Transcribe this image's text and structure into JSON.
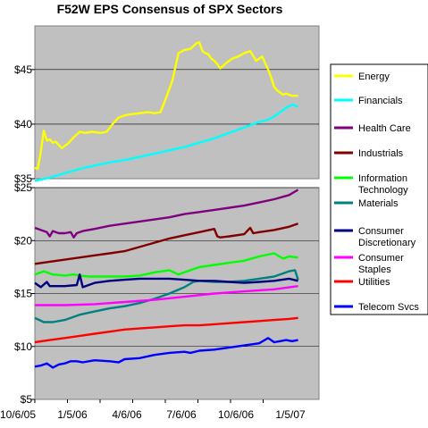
{
  "chart_data": {
    "type": "line",
    "title": "F52W EPS Consensus of SPX Sectors",
    "x_tick_labels": [
      "10/6/05",
      "1/5/06",
      "4/6/06",
      "7/6/06",
      "10/6/06",
      "1/5/07"
    ],
    "upper_panel": {
      "ylim": [
        35,
        49
      ],
      "y_tick_labels": [
        "$35",
        "$40",
        "$45"
      ],
      "y_ticks": [
        35,
        40,
        45
      ],
      "grid": true
    },
    "lower_panel": {
      "ylim": [
        5,
        25
      ],
      "y_tick_labels": [
        "$5",
        "$10",
        "$15",
        "$20",
        "$25"
      ],
      "y_ticks": [
        5,
        10,
        15,
        20,
        25
      ],
      "grid": true
    },
    "xlim": [
      0,
      95
    ],
    "legend_position": "right",
    "series": [
      {
        "name": "Energy",
        "legend_label": "Energy",
        "color": "#ffff00",
        "panel": "upper",
        "x": [
          0,
          1,
          2,
          3,
          4,
          5,
          6,
          7,
          9,
          11,
          13,
          15,
          17,
          19,
          22,
          24,
          26,
          28,
          30,
          32,
          35,
          38,
          40,
          42,
          44,
          46,
          48,
          50,
          52,
          54,
          55,
          56,
          57,
          58,
          59,
          60,
          61,
          62,
          64,
          66,
          67,
          68,
          70,
          72,
          74,
          76,
          78,
          79,
          80,
          81,
          82,
          83,
          84,
          86,
          88
        ],
        "y": [
          36.0,
          35.9,
          37.5,
          39.4,
          38.5,
          38.6,
          38.3,
          38.4,
          37.8,
          38.2,
          38.8,
          39.3,
          39.2,
          39.3,
          39.2,
          39.3,
          40.0,
          40.6,
          40.8,
          40.9,
          41.0,
          41.1,
          41.0,
          41.1,
          42.5,
          44.0,
          46.5,
          46.8,
          46.9,
          47.4,
          47.5,
          46.7,
          46.5,
          46.4,
          46.0,
          45.8,
          45.5,
          45.1,
          45.6,
          46.0,
          46.1,
          46.2,
          46.5,
          46.7,
          45.8,
          46.2,
          45.0,
          44.3,
          43.4,
          43.1,
          42.9,
          42.7,
          42.8,
          42.6,
          42.6
        ]
      },
      {
        "name": "Financials",
        "legend_label": "Financials",
        "color": "#00ffff",
        "panel": "upper",
        "x": [
          0,
          5,
          10,
          15,
          20,
          25,
          30,
          35,
          40,
          45,
          50,
          55,
          60,
          65,
          70,
          75,
          78,
          80,
          82,
          84,
          86,
          88
        ],
        "y": [
          34.8,
          35.1,
          35.5,
          35.9,
          36.2,
          36.5,
          36.7,
          37.0,
          37.3,
          37.6,
          37.9,
          38.3,
          38.7,
          39.2,
          39.7,
          40.2,
          40.4,
          40.7,
          41.1,
          41.5,
          41.8,
          41.6
        ]
      },
      {
        "name": "Health Care",
        "legend_label": "Health Care",
        "color": "#800080",
        "panel": "lower",
        "x": [
          0,
          2,
          4,
          5,
          6,
          8,
          10,
          12,
          13,
          14,
          16,
          20,
          25,
          30,
          35,
          40,
          45,
          50,
          55,
          60,
          65,
          70,
          75,
          80,
          85,
          88
        ],
        "y": [
          21.2,
          21.0,
          20.8,
          20.4,
          20.9,
          20.7,
          20.7,
          20.8,
          20.3,
          20.7,
          20.9,
          21.1,
          21.4,
          21.6,
          21.8,
          22.0,
          22.2,
          22.5,
          22.7,
          22.9,
          23.1,
          23.3,
          23.6,
          23.9,
          24.3,
          24.8
        ]
      },
      {
        "name": "Industrials",
        "legend_label": "Industrials",
        "color": "#800000",
        "panel": "lower",
        "x": [
          0,
          5,
          10,
          15,
          20,
          25,
          30,
          35,
          40,
          45,
          50,
          55,
          60,
          61,
          62,
          65,
          70,
          72,
          73,
          75,
          80,
          85,
          88
        ],
        "y": [
          17.8,
          18.0,
          18.2,
          18.4,
          18.6,
          18.8,
          19.0,
          19.4,
          19.8,
          20.2,
          20.5,
          20.8,
          21.1,
          20.4,
          20.3,
          20.4,
          20.6,
          21.2,
          20.7,
          20.8,
          21.0,
          21.3,
          21.6
        ]
      },
      {
        "name": "Information Technology",
        "legend_label": "Information Technology",
        "color": "#00ff00",
        "panel": "lower",
        "x": [
          0,
          3,
          6,
          10,
          13,
          15,
          18,
          20,
          25,
          30,
          35,
          40,
          45,
          48,
          50,
          55,
          60,
          65,
          70,
          75,
          80,
          83,
          85,
          88
        ],
        "y": [
          16.8,
          17.1,
          16.8,
          16.7,
          16.8,
          16.7,
          16.6,
          16.6,
          16.6,
          16.6,
          16.7,
          17.0,
          17.2,
          16.8,
          17.0,
          17.5,
          17.7,
          17.9,
          18.1,
          18.5,
          18.8,
          18.3,
          18.5,
          18.4
        ]
      },
      {
        "name": "Materials",
        "legend_label": "Materials",
        "color": "#008080",
        "panel": "lower",
        "x": [
          0,
          3,
          6,
          10,
          15,
          20,
          25,
          30,
          35,
          40,
          45,
          50,
          53,
          55,
          60,
          65,
          70,
          75,
          80,
          83,
          85,
          87,
          88
        ],
        "y": [
          12.7,
          12.3,
          12.3,
          12.5,
          13.0,
          13.3,
          13.6,
          13.8,
          14.1,
          14.5,
          15.0,
          15.6,
          16.1,
          16.2,
          16.1,
          16.1,
          16.2,
          16.4,
          16.6,
          16.9,
          17.1,
          17.2,
          16.3
        ]
      },
      {
        "name": "Consumer Discretionary",
        "legend_label": "Consumer Discretionary",
        "color": "#000080",
        "panel": "lower",
        "x": [
          0,
          2,
          4,
          5,
          6,
          10,
          14,
          15,
          16,
          20,
          25,
          30,
          35,
          40,
          45,
          50,
          55,
          60,
          65,
          70,
          75,
          80,
          85,
          88
        ],
        "y": [
          16.0,
          15.6,
          16.1,
          15.7,
          15.7,
          15.7,
          15.8,
          16.8,
          15.6,
          16.0,
          16.2,
          16.3,
          16.4,
          16.4,
          16.4,
          16.3,
          16.2,
          16.2,
          16.1,
          16.0,
          16.1,
          16.2,
          16.4,
          16.2
        ]
      },
      {
        "name": "Consumer Staples",
        "legend_label": "Consumer Staples",
        "color": "#ff00ff",
        "panel": "lower",
        "x": [
          0,
          10,
          20,
          30,
          40,
          50,
          60,
          70,
          80,
          88
        ],
        "y": [
          13.9,
          13.9,
          14.0,
          14.2,
          14.4,
          14.7,
          15.0,
          15.2,
          15.4,
          15.7
        ]
      },
      {
        "name": "Utilities",
        "legend_label": "Utilities",
        "color": "#ff0000",
        "panel": "lower",
        "x": [
          0,
          5,
          10,
          15,
          20,
          25,
          30,
          35,
          40,
          45,
          50,
          55,
          60,
          65,
          70,
          75,
          80,
          85,
          88
        ],
        "y": [
          10.4,
          10.6,
          10.8,
          11.0,
          11.2,
          11.4,
          11.6,
          11.7,
          11.8,
          11.9,
          12.0,
          12.0,
          12.1,
          12.2,
          12.3,
          12.4,
          12.5,
          12.6,
          12.7
        ]
      },
      {
        "name": "Telecom Svcs",
        "legend_label": "Telecom Svcs",
        "color": "#0000ff",
        "panel": "lower",
        "x": [
          0,
          2,
          4,
          6,
          8,
          10,
          12,
          14,
          16,
          20,
          25,
          28,
          30,
          35,
          40,
          45,
          50,
          52,
          55,
          60,
          65,
          70,
          75,
          78,
          80,
          82,
          84,
          86,
          88
        ],
        "y": [
          8.1,
          8.2,
          8.4,
          8.0,
          8.3,
          8.4,
          8.6,
          8.6,
          8.5,
          8.7,
          8.6,
          8.5,
          8.8,
          8.9,
          9.2,
          9.4,
          9.5,
          9.4,
          9.6,
          9.7,
          9.9,
          10.1,
          10.3,
          10.8,
          10.4,
          10.5,
          10.6,
          10.5,
          10.6
        ]
      }
    ]
  }
}
